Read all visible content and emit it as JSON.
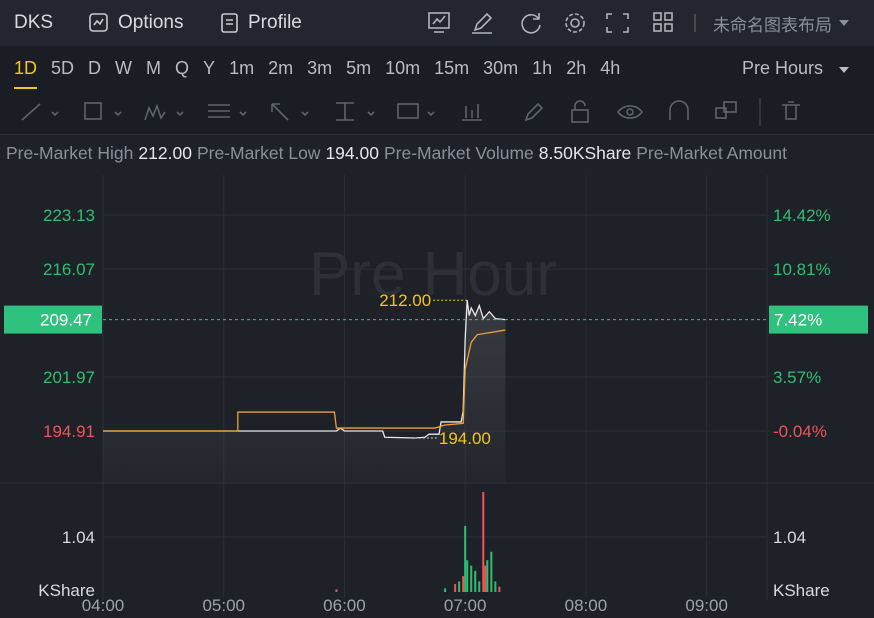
{
  "header": {
    "symbol": "DKS",
    "options": "Options",
    "profile": "Profile",
    "layout": "未命名图表布局"
  },
  "timeframes": [
    "1D",
    "5D",
    "D",
    "W",
    "M",
    "Q",
    "Y",
    "1m",
    "2m",
    "3m",
    "5m",
    "10m",
    "15m",
    "30m",
    "1h",
    "2h",
    "4h"
  ],
  "session": "Pre Hours",
  "stats": [
    {
      "label": "Pre-Market High",
      "value": "212.00"
    },
    {
      "label": "Pre-Market Low",
      "value": "194.00"
    },
    {
      "label": "Pre-Market Volume",
      "value": "8.50KShare"
    },
    {
      "label": "Pre-Market Amount",
      "value": ""
    }
  ],
  "chart_data": {
    "type": "line",
    "watermark": "Pre Hour",
    "xlim": [
      "04:00",
      "09:30"
    ],
    "xticks": [
      "04:00",
      "05:00",
      "06:00",
      "07:00",
      "08:00",
      "09:00"
    ],
    "ylim": [
      188.12,
      228.36
    ],
    "yticks": [
      223.13,
      216.07,
      201.97,
      194.91
    ],
    "y2lim": [
      -3.52,
      17.11
    ],
    "y2ticks": [
      {
        "value": 14.42,
        "label": "14.42%"
      },
      {
        "value": 10.81,
        "label": "10.81%"
      },
      {
        "value": 3.57,
        "label": "3.57%"
      },
      {
        "value": -0.04,
        "label": "-0.04%"
      }
    ],
    "up_color": "#2fbf71",
    "down_color": "#f0545a",
    "last_price": 209.47,
    "last_change": {
      "value": 7.42,
      "label": "7.42%"
    },
    "series": [
      {
        "color": "#e8e8e8",
        "x": [
          "04:00",
          "05:56",
          "05:58",
          "06:00",
          "06:19",
          "06:20",
          "06:35",
          "06:40",
          "06:42",
          "06:47",
          "06:48",
          "06:58",
          "06:59",
          "07:00",
          "07:01",
          "07:02",
          "07:03",
          "07:05",
          "07:07",
          "07:09",
          "07:12",
          "07:15",
          "07:20"
        ],
        "values": [
          194.91,
          194.91,
          195.3,
          194.91,
          194.91,
          194.1,
          194.0,
          194.1,
          194.5,
          194.5,
          196.1,
          196.1,
          197.5,
          207.0,
          212.0,
          210.0,
          211.0,
          210.0,
          211.3,
          209.6,
          210.5,
          209.6,
          209.47
        ]
      },
      {
        "color": "#f0a030",
        "x": [
          "04:00",
          "05:07",
          "05:07",
          "05:55",
          "05:56",
          "06:45",
          "06:50",
          "06:59",
          "07:00",
          "07:03",
          "07:06",
          "07:20"
        ],
        "values": [
          194.91,
          194.91,
          197.39,
          197.39,
          195.3,
          195.3,
          195.7,
          195.9,
          203.0,
          206.5,
          207.5,
          208.1
        ]
      }
    ],
    "annotations": [
      {
        "x": "07:01",
        "value": 212.0,
        "label": "212.00",
        "side": "left"
      },
      {
        "x": "06:35",
        "value": 194.0,
        "label": "194.00",
        "side": "right"
      }
    ],
    "volume": {
      "unit": "KShare",
      "ylim": [
        0,
        2.06
      ],
      "yticks": [
        1.04
      ],
      "x": [
        "05:56",
        "06:50",
        "06:55",
        "06:57",
        "06:59",
        "07:00",
        "07:01",
        "07:03",
        "07:05",
        "07:07",
        "07:09",
        "07:10",
        "07:11",
        "07:13",
        "07:15",
        "07:17"
      ],
      "values": [
        0.05,
        0.07,
        0.15,
        0.2,
        0.3,
        1.25,
        0.6,
        0.5,
        0.4,
        0.2,
        1.89,
        0.5,
        0.6,
        0.76,
        0.2,
        0.1
      ],
      "colors": [
        "#f0545a",
        "#2fbf71",
        "#f0545a",
        "#2fbf71",
        "#f0545a",
        "#2fbf71",
        "#2fbf71",
        "#2fbf71",
        "#2fbf71",
        "#2fbf71",
        "#f0545a",
        "#f0545a",
        "#2fbf71",
        "#2fbf71",
        "#2fbf71",
        "#f0545a"
      ]
    }
  }
}
